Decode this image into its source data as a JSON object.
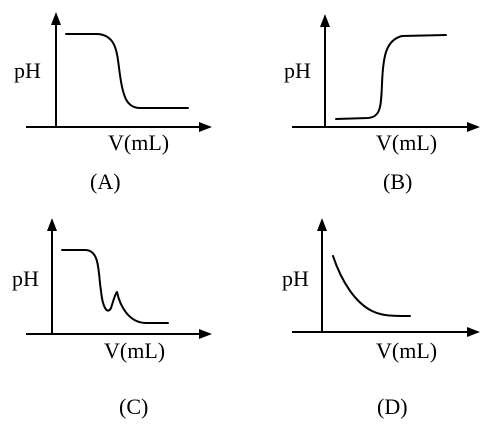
{
  "figure": {
    "panels": [
      {
        "id": "A",
        "ylabel": "pH",
        "xlabel": "V(mL)",
        "caption": "(A)"
      },
      {
        "id": "B",
        "ylabel": "pH",
        "xlabel": "V(mL)",
        "caption": "(B)"
      },
      {
        "id": "C",
        "ylabel": "pH",
        "xlabel": "V(mL)",
        "caption": "(C)"
      },
      {
        "id": "D",
        "ylabel": "pH",
        "xlabel": "V(mL)",
        "caption": "(D)"
      }
    ]
  }
}
